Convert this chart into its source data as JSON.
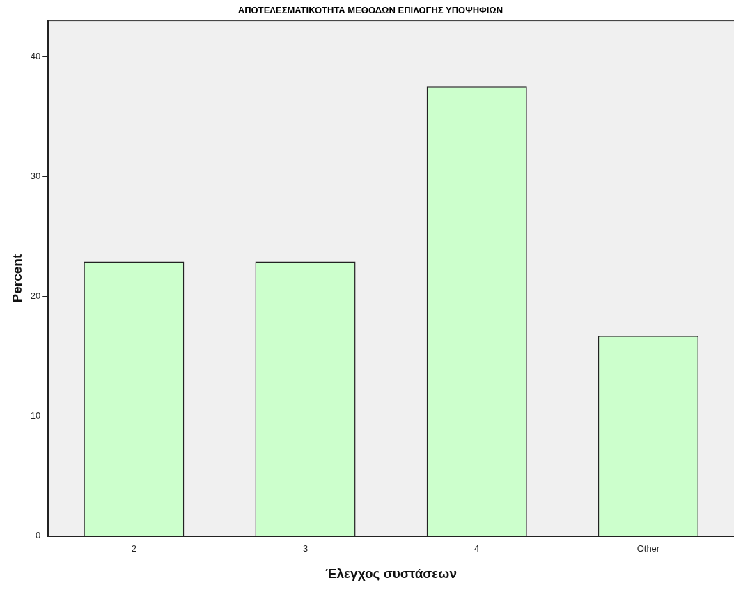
{
  "chart_data": {
    "type": "bar",
    "title": "ΑΠΟΤΕΛΕΣΜΑΤΙΚΟΤΗΤΑ ΜΕΘΟΔΩΝ ΕΠΙΛΟΓΗΣ ΥΠΟΨΗΦΙΩΝ",
    "xlabel": "Έλεγχος συστάσεων",
    "ylabel": "Percent",
    "categories": [
      "2",
      "3",
      "4",
      "Other"
    ],
    "values": [
      22.9,
      22.9,
      37.5,
      16.7
    ],
    "color": "#ccffcc",
    "ylim": [
      0,
      43
    ],
    "yticks": [
      0,
      10,
      20,
      30,
      40
    ],
    "grid": false,
    "legend": false
  }
}
